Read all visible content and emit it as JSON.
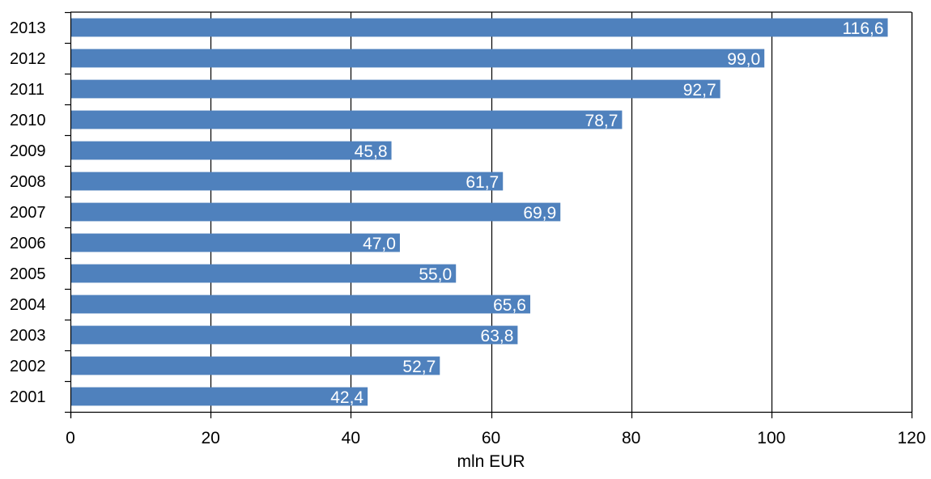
{
  "chart_data": {
    "type": "bar",
    "orientation": "horizontal",
    "categories": [
      "2013",
      "2012",
      "2011",
      "2010",
      "2009",
      "2008",
      "2007",
      "2006",
      "2005",
      "2004",
      "2003",
      "2002",
      "2001"
    ],
    "values": [
      116.6,
      99.0,
      92.7,
      78.7,
      45.8,
      61.7,
      69.9,
      47.0,
      55.0,
      65.6,
      63.8,
      52.7,
      42.4
    ],
    "data_labels": [
      "116,6",
      "99,0",
      "92,7",
      "78,7",
      "45,8",
      "61,7",
      "69,9",
      "47,0",
      "55,0",
      "65,6",
      "63,8",
      "52,7",
      "42,4"
    ],
    "title": "",
    "xlabel": "mln EUR",
    "ylabel": "",
    "xlim": [
      0,
      120
    ],
    "xticks": [
      0,
      20,
      40,
      60,
      80,
      100,
      120
    ],
    "xtick_labels": [
      "0",
      "20",
      "40",
      "60",
      "80",
      "100",
      "120"
    ],
    "grid": "vertical major gridlines",
    "legend": "none",
    "colors": {
      "bar": "#4F81BD",
      "grid": "#000000",
      "axis": "#000000",
      "data_label": "#FFFFFF"
    }
  }
}
